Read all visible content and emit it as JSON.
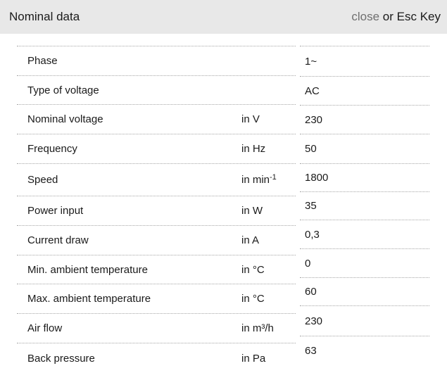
{
  "header": {
    "title": "Nominal data",
    "close_label": "close",
    "close_suffix": " or Esc Key"
  },
  "colors": {
    "header_bg": "#e8e8e8",
    "close_gray": "#6f6f6f",
    "divider": "#a6a6a6",
    "text": "#1a1a1a"
  },
  "table": {
    "rows": [
      {
        "label": "Phase",
        "unit": "",
        "value": "1~"
      },
      {
        "label": "Type of voltage",
        "unit": "",
        "value": "AC"
      },
      {
        "label": "Nominal voltage",
        "unit": "in V",
        "value": "230"
      },
      {
        "label": "Frequency",
        "unit": "in Hz",
        "value": "50"
      },
      {
        "label": "Speed",
        "unit": "in min",
        "unit_sup": "-1",
        "value": "1800"
      },
      {
        "label": "Power input",
        "unit": "in W",
        "value": "35"
      },
      {
        "label": "Current draw",
        "unit": "in A",
        "value": "0,3"
      },
      {
        "label": "Min. ambient temperature",
        "unit": "in °C",
        "value": "0"
      },
      {
        "label": "Max. ambient temperature",
        "unit": "in °C",
        "value": "60"
      },
      {
        "label": "Air flow",
        "unit": "in m³/h",
        "value": "230"
      },
      {
        "label": "Back pressure",
        "unit": "in Pa",
        "value": "63"
      }
    ]
  }
}
